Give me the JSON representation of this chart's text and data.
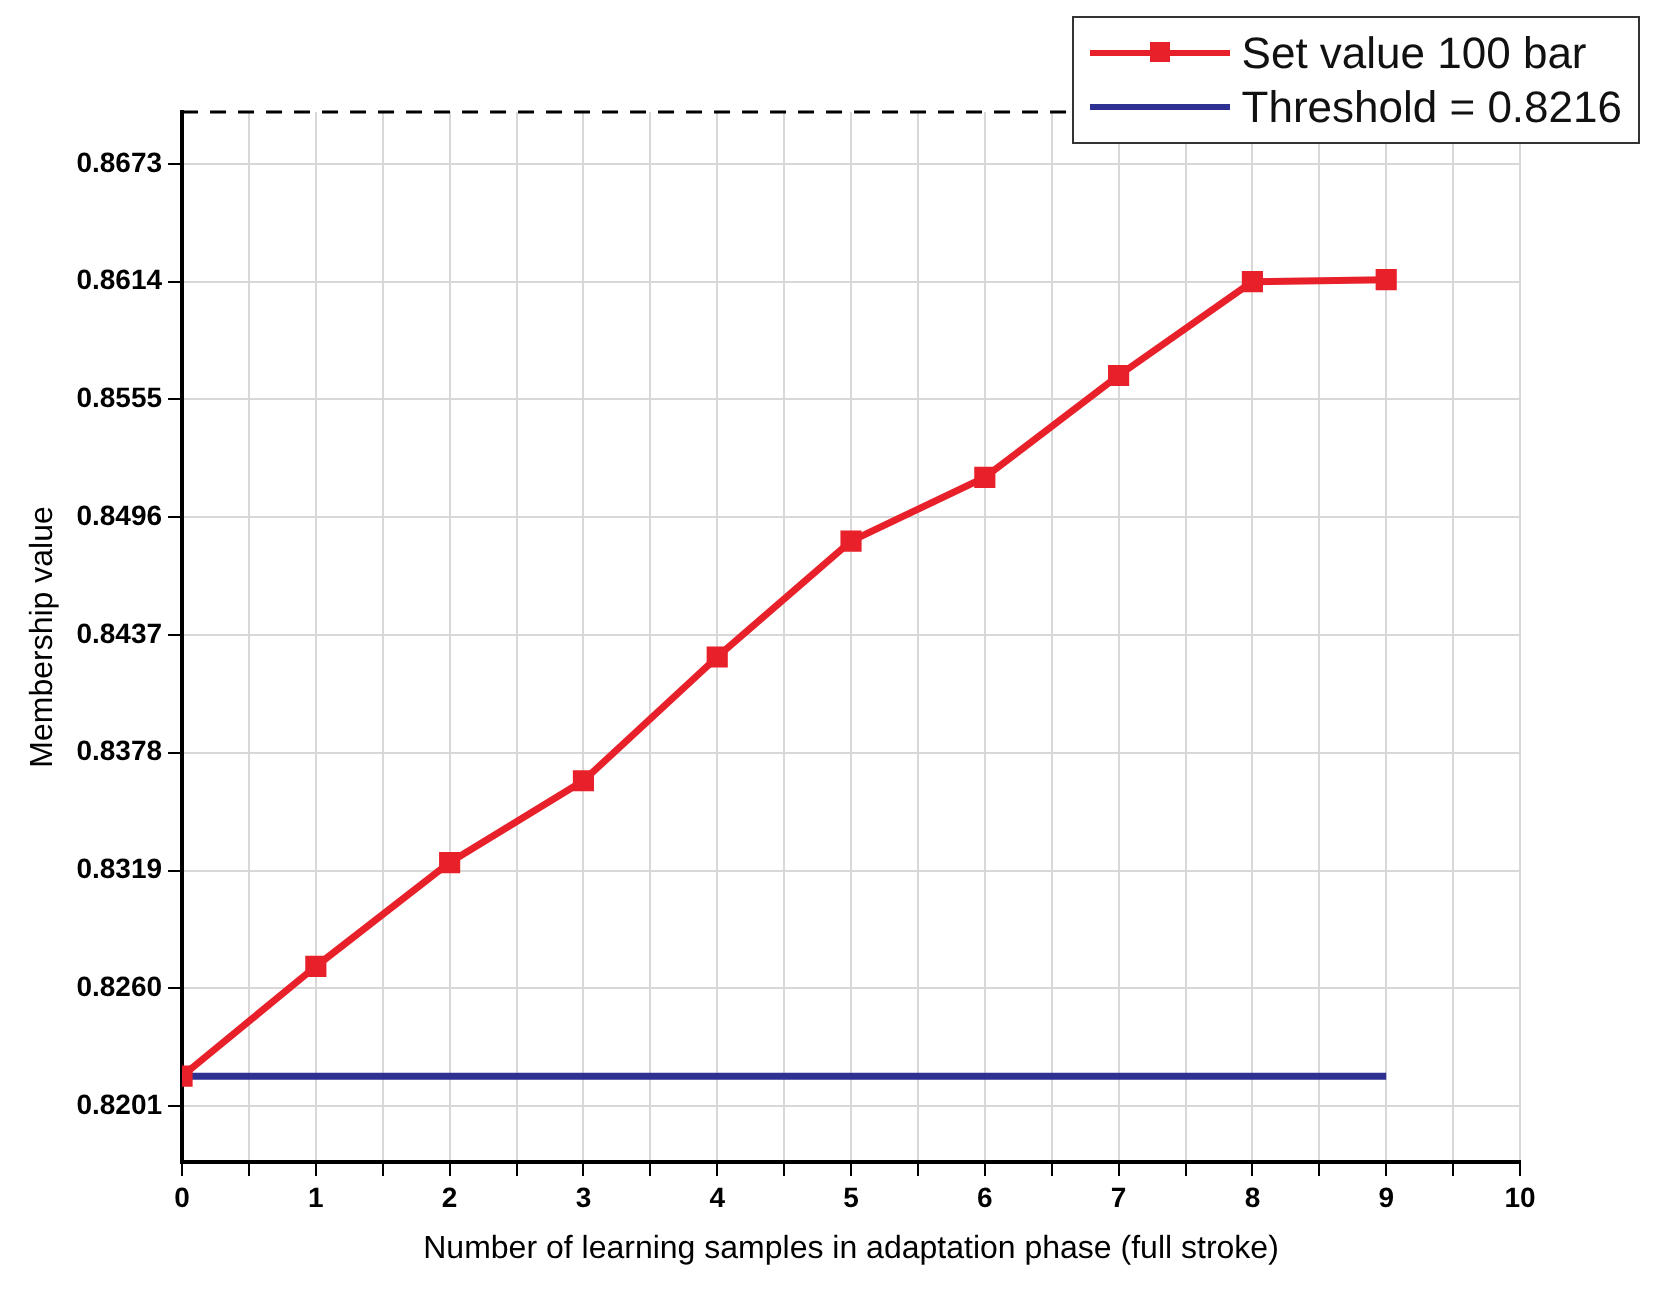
{
  "chart_data": {
    "type": "line",
    "xlabel": "Number of learning samples in adaptation phase (full stroke)",
    "ylabel": "Membership value",
    "x": [
      0,
      1,
      2,
      3,
      4,
      5,
      6,
      7,
      8,
      9
    ],
    "series": [
      {
        "name": "Set value 100 bar",
        "color": "#e8202a",
        "marker": "square",
        "values": [
          0.8216,
          0.8271,
          0.8323,
          0.8364,
          0.8426,
          0.8484,
          0.8516,
          0.8567,
          0.8614,
          0.8615
        ]
      },
      {
        "name": "Threshold = 0.8216",
        "color": "#2e3192",
        "marker": "none",
        "x": [
          0,
          9
        ],
        "values": [
          0.8216,
          0.8216
        ]
      }
    ],
    "xlim": [
      0,
      10
    ],
    "xticks": [
      0,
      {
        "value": 0.5,
        "label": null
      },
      1,
      {
        "value": 1.5,
        "label": null
      },
      2,
      {
        "value": 2.5,
        "label": null
      },
      3,
      {
        "value": 3.5,
        "label": null
      },
      4,
      {
        "value": 4.5,
        "label": null
      },
      5,
      {
        "value": 5.5,
        "label": null
      },
      6,
      {
        "value": 6.5,
        "label": null
      },
      7,
      {
        "value": 7.5,
        "label": null
      },
      8,
      {
        "value": 8.5,
        "label": null
      },
      9,
      {
        "value": 9.5,
        "label": null
      },
      10
    ],
    "ylim": [
      0.8173,
      0.8699
    ],
    "yticks": [
      0.8201,
      {
        "value": 0.826,
        "label": "0.8260"
      },
      0.8319,
      0.8378,
      0.8437,
      0.8496,
      0.8555,
      0.8614,
      0.8673
    ],
    "grid": true,
    "legend": "top right"
  }
}
